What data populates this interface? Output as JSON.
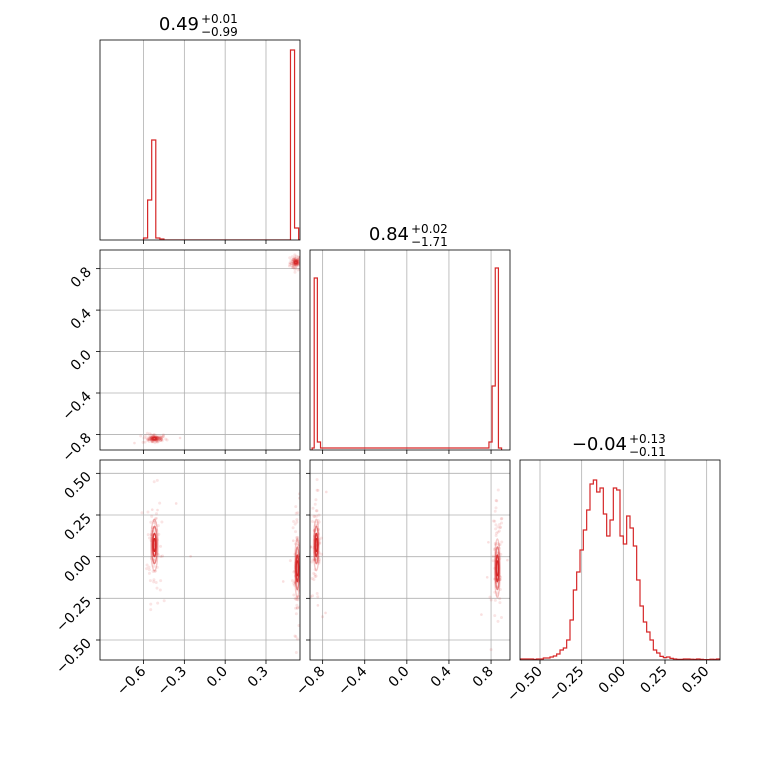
{
  "figure": {
    "type": "corner",
    "color": "#d62728",
    "grid": true
  },
  "chart_data": [
    {
      "panel": "p1-marginal",
      "type": "bar",
      "title": {
        "value": "0.49",
        "plus": "+0.01",
        "minus": "−0.99"
      },
      "xlim": [
        -0.92,
        0.55
      ],
      "xgrid": [
        -0.6,
        -0.3,
        0.0,
        0.3
      ],
      "histogram": {
        "edges": [
          -0.6,
          -0.57,
          -0.54,
          -0.51,
          -0.48,
          -0.45,
          -0.42,
          -0.39,
          0.48,
          0.51,
          0.54,
          0.55
        ],
        "heights": [
          0.01,
          0.2,
          0.5,
          0.01,
          0.005,
          0,
          0,
          0,
          0.95,
          0.06,
          0
        ],
        "note_heights": "relative to panel height"
      }
    },
    {
      "panel": "p2-marginal",
      "type": "bar",
      "title": {
        "value": "0.84",
        "plus": "+0.02",
        "minus": "−1.71"
      },
      "xlim": [
        -0.92,
        0.98
      ],
      "xgrid": [
        -0.8,
        -0.4,
        0.0,
        0.4,
        0.8
      ],
      "histogram": {
        "edges": [
          -0.9,
          -0.88,
          -0.85,
          -0.82,
          0.78,
          0.81,
          0.84,
          0.87,
          0.9
        ],
        "heights": [
          0.01,
          0.86,
          0.04,
          0.01,
          0.04,
          0.32,
          0.91,
          0.01
        ],
        "note_heights": "relative to panel height"
      }
    },
    {
      "panel": "p3-marginal",
      "type": "bar",
      "title": {
        "value": "−0.04",
        "plus": "+0.13",
        "minus": "−0.11"
      },
      "xlim": [
        -0.62,
        0.58
      ],
      "xticks": [
        -0.5,
        -0.25,
        0.0,
        0.25,
        0.5
      ],
      "xticklabels": [
        "−0.50",
        "−0.25",
        "0.00",
        "0.25",
        "0.50"
      ],
      "histogram": {
        "x0": -0.62,
        "binwidth": 0.02,
        "heights": [
          0.005,
          0.005,
          0.005,
          0.005,
          0.003,
          0.005,
          0.005,
          0.01,
          0.01,
          0.015,
          0.02,
          0.03,
          0.05,
          0.06,
          0.1,
          0.2,
          0.35,
          0.44,
          0.55,
          0.65,
          0.75,
          0.88,
          0.9,
          0.84,
          0.86,
          0.73,
          0.62,
          0.7,
          0.86,
          0.85,
          0.62,
          0.58,
          0.72,
          0.66,
          0.57,
          0.4,
          0.27,
          0.19,
          0.14,
          0.1,
          0.05,
          0.035,
          0.018,
          0.012,
          0.015,
          0.008,
          0.005,
          0.003,
          0.003,
          0.005,
          0.005,
          0.004,
          0.003,
          0.005,
          0.003,
          0.002,
          0.002,
          0.004,
          0.003,
          0.005
        ],
        "note_heights": "relative to panel height"
      }
    },
    {
      "panel": "p21-joint",
      "type": "scatter",
      "xlim": [
        -0.92,
        0.55
      ],
      "ylim": [
        -0.95,
        0.98
      ],
      "yticks": [
        -0.8,
        -0.4,
        0.0,
        0.4,
        0.8
      ],
      "yticklabels": [
        "−0.8",
        "−0.4",
        "0.0",
        "0.4",
        "0.8"
      ],
      "clusters": [
        {
          "x": 0.52,
          "y": 0.86,
          "sx": 0.01,
          "sy": 0.015
        },
        {
          "x": -0.52,
          "y": -0.84,
          "sx": 0.02,
          "sy": 0.01
        }
      ]
    },
    {
      "panel": "p31-joint",
      "type": "scatter",
      "xlim": [
        -0.92,
        0.55
      ],
      "ylim": [
        -0.62,
        0.58
      ],
      "xticks": [
        -0.6,
        -0.3,
        0.0,
        0.3
      ],
      "xticklabels": [
        "−0.6",
        "−0.3",
        "0.0",
        "0.3"
      ],
      "yticks": [
        -0.5,
        -0.25,
        0.0,
        0.25,
        0.5
      ],
      "yticklabels": [
        "−0.50",
        "−0.25",
        "0.00",
        "0.25",
        "0.50"
      ],
      "clusters": [
        {
          "x": -0.52,
          "y": 0.07,
          "sx": 0.012,
          "sy": 0.07
        },
        {
          "x": 0.53,
          "y": -0.07,
          "sx": 0.008,
          "sy": 0.08
        }
      ]
    },
    {
      "panel": "p32-joint",
      "type": "scatter",
      "xlim": [
        -0.92,
        0.98
      ],
      "ylim": [
        -0.62,
        0.58
      ],
      "xticks": [
        -0.8,
        -0.4,
        0.0,
        0.4,
        0.8
      ],
      "xticklabels": [
        "−0.8",
        "−0.4",
        "0.0",
        "0.4",
        "0.8"
      ],
      "clusters": [
        {
          "x": -0.86,
          "y": 0.07,
          "sx": 0.012,
          "sy": 0.07
        },
        {
          "x": 0.86,
          "y": -0.07,
          "sx": 0.012,
          "sy": 0.08
        }
      ]
    }
  ]
}
